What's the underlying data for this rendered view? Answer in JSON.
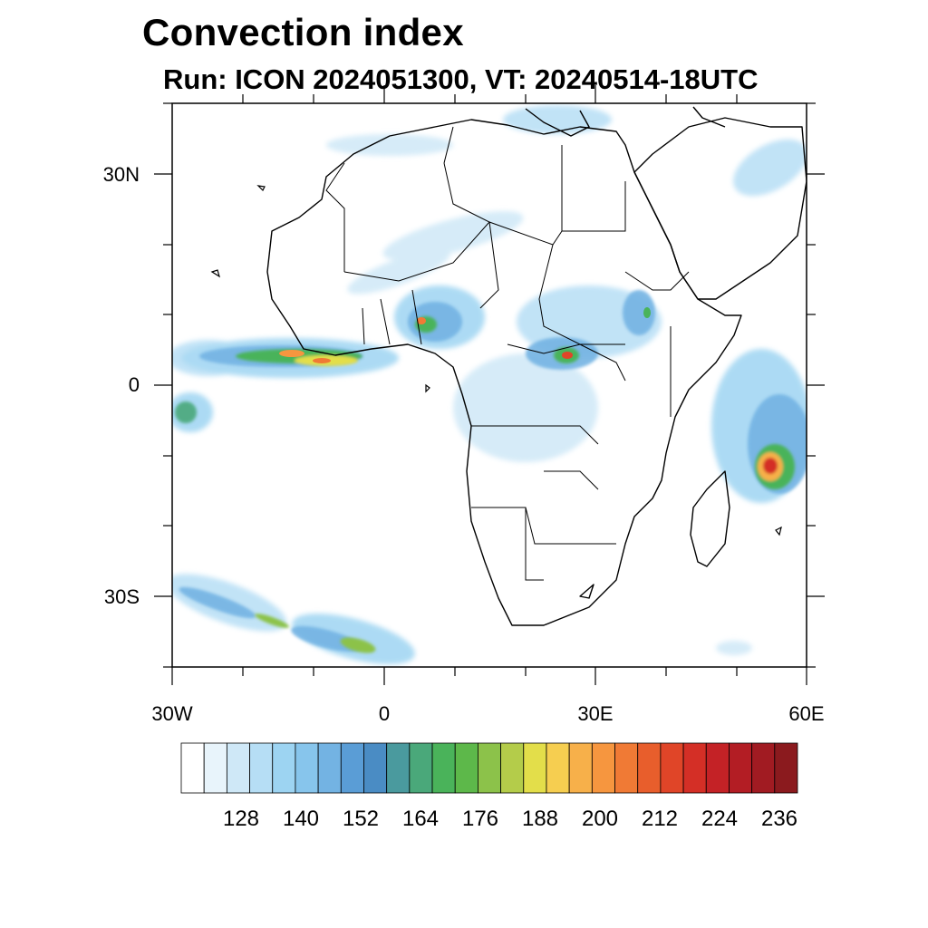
{
  "title": "Convection index",
  "subtitle": "Run: ICON 2024051300,  VT: 20240514-18UTC",
  "map": {
    "region": "Africa",
    "lon_range": [
      -30,
      60
    ],
    "lat_range": [
      -40,
      40
    ],
    "lat_labels": [
      "30N",
      "0",
      "30S"
    ],
    "lon_labels": [
      "30W",
      "0",
      "30E",
      "60E"
    ],
    "hotspots": [
      {
        "area": "West African coast / Gulf of Guinea band",
        "level": "high"
      },
      {
        "area": "Nigeria",
        "level": "high"
      },
      {
        "area": "South Sudan / DRC border",
        "level": "high"
      },
      {
        "area": "Ethiopian highlands",
        "level": "moderate"
      },
      {
        "area": "Indian Ocean cyclone east of Madagascar",
        "level": "very high"
      },
      {
        "area": "South Atlantic frontal band",
        "level": "moderate"
      }
    ]
  },
  "colorbar": {
    "labels": [
      "128",
      "140",
      "152",
      "164",
      "176",
      "188",
      "200",
      "212",
      "224",
      "236"
    ],
    "colors": [
      "#ffffff",
      "#e8f4fb",
      "#cfe8f7",
      "#b6def5",
      "#9dd4f2",
      "#87c5ec",
      "#73b3e3",
      "#5a9dd6",
      "#4a8cc4",
      "#4a9a9e",
      "#4aa87a",
      "#4ab35a",
      "#5db84a",
      "#8cc24a",
      "#b4cc4a",
      "#e3de4a",
      "#f6ce50",
      "#f7b04a",
      "#f6963f",
      "#f07a35",
      "#e85e2c",
      "#e04528",
      "#d42f26",
      "#c42226",
      "#b31d24",
      "#a11b22",
      "#8b1a1e"
    ]
  }
}
